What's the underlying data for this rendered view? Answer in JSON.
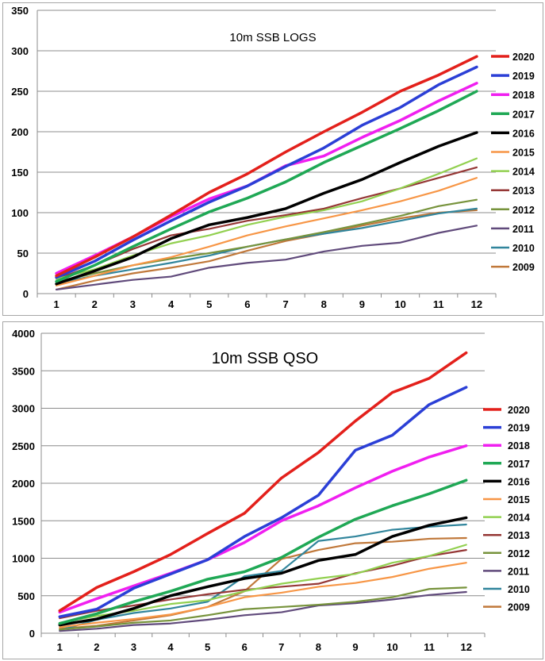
{
  "colors": {
    "2020": "#e3201b",
    "2019": "#2b3fd6",
    "2018": "#f01ff0",
    "2017": "#1fa855",
    "2016": "#000000",
    "2015": "#f79646",
    "2014": "#92d050",
    "2013": "#953735",
    "2012": "#77933c",
    "2011": "#604a7b",
    "2010": "#31859c",
    "2009": "#c0783a"
  },
  "chart_data": [
    {
      "type": "line",
      "title": "10m SSB LOGS",
      "xlabel": "",
      "ylabel": "",
      "x": [
        1,
        2,
        3,
        4,
        5,
        6,
        7,
        8,
        9,
        10,
        11,
        12
      ],
      "ylim": [
        0,
        350
      ],
      "yticks": [
        0,
        50,
        100,
        150,
        200,
        250,
        300,
        350
      ],
      "grid": "horizontal",
      "legend": "right",
      "series": [
        {
          "name": "2020",
          "values": [
            22,
            45,
            70,
            97,
            125,
            148,
            175,
            200,
            224,
            250,
            270,
            293
          ]
        },
        {
          "name": "2019",
          "values": [
            20,
            40,
            66,
            90,
            113,
            133,
            157,
            180,
            208,
            230,
            258,
            280
          ]
        },
        {
          "name": "2018",
          "values": [
            25,
            47,
            70,
            95,
            117,
            133,
            158,
            170,
            193,
            214,
            238,
            260
          ]
        },
        {
          "name": "2017",
          "values": [
            15,
            35,
            58,
            80,
            101,
            118,
            138,
            162,
            183,
            204,
            226,
            250
          ]
        },
        {
          "name": "2016",
          "values": [
            12,
            28,
            45,
            68,
            85,
            94,
            105,
            124,
            141,
            162,
            182,
            199
          ]
        },
        {
          "name": "2015",
          "values": [
            10,
            22,
            35,
            45,
            58,
            72,
            83,
            93,
            103,
            114,
            127,
            143
          ]
        },
        {
          "name": "2014",
          "values": [
            18,
            30,
            47,
            62,
            72,
            85,
            95,
            103,
            114,
            130,
            148,
            167
          ]
        },
        {
          "name": "2013",
          "values": [
            18,
            35,
            55,
            72,
            80,
            90,
            97,
            105,
            118,
            130,
            143,
            156
          ]
        },
        {
          "name": "2012",
          "values": [
            15,
            25,
            35,
            43,
            50,
            58,
            67,
            76,
            86,
            96,
            108,
            116
          ]
        },
        {
          "name": "2011",
          "values": [
            5,
            11,
            17,
            21,
            32,
            38,
            42,
            52,
            59,
            63,
            75,
            84
          ]
        },
        {
          "name": "2010",
          "values": [
            13,
            22,
            30,
            38,
            47,
            58,
            67,
            74,
            81,
            90,
            99,
            105
          ]
        },
        {
          "name": "2009",
          "values": [
            5,
            16,
            25,
            32,
            40,
            53,
            65,
            74,
            84,
            93,
            100,
            103
          ]
        }
      ]
    },
    {
      "type": "line",
      "title": "10m SSB QSO",
      "xlabel": "",
      "ylabel": "",
      "x": [
        1,
        2,
        3,
        4,
        5,
        6,
        7,
        8,
        9,
        10,
        11,
        12
      ],
      "ylim": [
        0,
        4000
      ],
      "yticks": [
        0,
        500,
        1000,
        1500,
        2000,
        2500,
        3000,
        3500,
        4000
      ],
      "grid": "horizontal",
      "legend": "right",
      "series": [
        {
          "name": "2020",
          "values": [
            300,
            610,
            820,
            1050,
            1330,
            1600,
            2070,
            2410,
            2830,
            3210,
            3400,
            3740
          ]
        },
        {
          "name": "2019",
          "values": [
            220,
            320,
            600,
            790,
            980,
            1290,
            1540,
            1840,
            2440,
            2640,
            3050,
            3280
          ]
        },
        {
          "name": "2018",
          "values": [
            280,
            460,
            630,
            800,
            980,
            1210,
            1500,
            1700,
            1940,
            2160,
            2350,
            2500
          ]
        },
        {
          "name": "2017",
          "values": [
            130,
            260,
            420,
            560,
            720,
            820,
            1010,
            1280,
            1520,
            1700,
            1860,
            2040
          ]
        },
        {
          "name": "2016",
          "values": [
            110,
            190,
            330,
            500,
            620,
            730,
            800,
            970,
            1050,
            1290,
            1440,
            1540
          ]
        },
        {
          "name": "2015",
          "values": [
            80,
            140,
            190,
            250,
            350,
            480,
            540,
            620,
            670,
            750,
            860,
            940
          ]
        },
        {
          "name": "2014",
          "values": [
            140,
            230,
            300,
            390,
            440,
            560,
            660,
            730,
            790,
            940,
            1030,
            1180
          ]
        },
        {
          "name": "2013",
          "values": [
            200,
            300,
            370,
            450,
            520,
            580,
            620,
            660,
            800,
            900,
            1030,
            1110
          ]
        },
        {
          "name": "2012",
          "values": [
            50,
            90,
            140,
            170,
            240,
            320,
            350,
            380,
            420,
            480,
            590,
            610
          ]
        },
        {
          "name": "2011",
          "values": [
            30,
            60,
            110,
            130,
            180,
            240,
            280,
            370,
            400,
            450,
            510,
            550
          ]
        },
        {
          "name": "2010",
          "values": [
            40,
            180,
            270,
            330,
            420,
            760,
            830,
            1230,
            1290,
            1380,
            1420,
            1450
          ]
        },
        {
          "name": "2009",
          "values": [
            60,
            100,
            170,
            240,
            350,
            560,
            990,
            1110,
            1200,
            1220,
            1260,
            1270
          ]
        }
      ]
    }
  ]
}
